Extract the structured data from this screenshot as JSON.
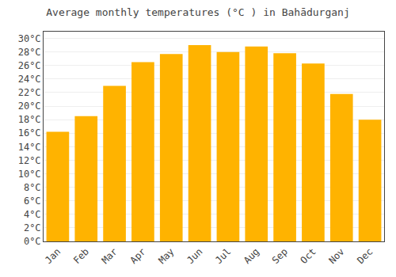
{
  "chart_data": {
    "type": "bar",
    "title": "Average monthly temperatures (°C ) in Bahādurganj",
    "categories": [
      "Jan",
      "Feb",
      "Mar",
      "Apr",
      "May",
      "Jun",
      "Jul",
      "Aug",
      "Sep",
      "Oct",
      "Nov",
      "Dec"
    ],
    "values": [
      16.2,
      18.5,
      23.0,
      26.5,
      27.7,
      29.0,
      28.0,
      28.8,
      27.8,
      26.3,
      21.8,
      18.0
    ],
    "color": "#FFB300",
    "ylim": [
      0,
      31
    ],
    "yticks": [
      {
        "value": 0,
        "label": "0°C"
      },
      {
        "value": 2,
        "label": "2°C"
      },
      {
        "value": 4,
        "label": "4°C"
      },
      {
        "value": 6,
        "label": "6°C"
      },
      {
        "value": 8,
        "label": "8°C"
      },
      {
        "value": 10,
        "label": "10°C"
      },
      {
        "value": 12,
        "label": "12°C"
      },
      {
        "value": 14,
        "label": "14°C"
      },
      {
        "value": 16,
        "label": "16°C"
      },
      {
        "value": 18,
        "label": "18°C"
      },
      {
        "value": 20,
        "label": "20°C"
      },
      {
        "value": 22,
        "label": "22°C"
      },
      {
        "value": 24,
        "label": "24°C"
      },
      {
        "value": 26,
        "label": "26°C"
      },
      {
        "value": 28,
        "label": "28°C"
      },
      {
        "value": 30,
        "label": "30°C"
      }
    ],
    "grid": true
  }
}
